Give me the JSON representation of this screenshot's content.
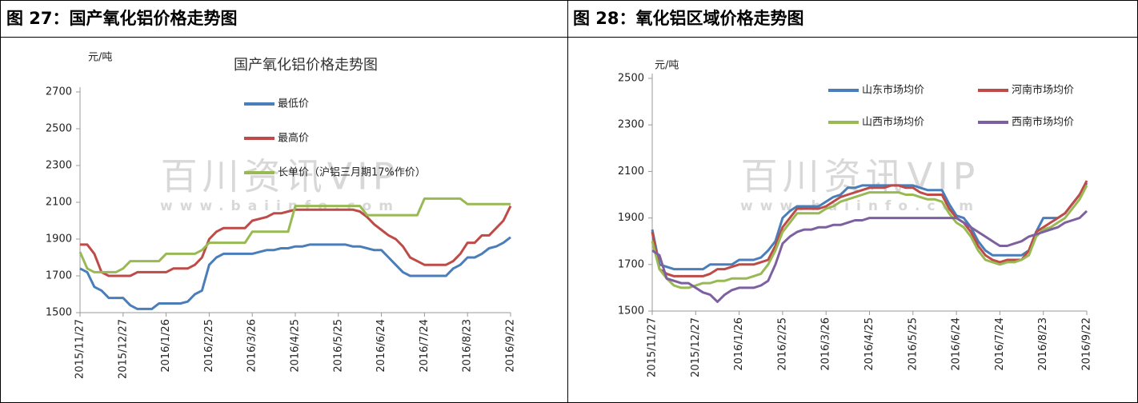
{
  "headings": [
    "图 27：国产氧化铝价格走势图",
    "图 28：氧化铝区域价格走势图"
  ],
  "chart_data": [
    {
      "type": "line",
      "title": "国产氧化铝价格走势图",
      "y_unit": "元/吨",
      "watermark": [
        "百川资讯VIP",
        "www.baiinfo.com"
      ],
      "categories": [
        "2015/11/27",
        null,
        null,
        null,
        null,
        null,
        "2015/12/27",
        null,
        null,
        null,
        null,
        null,
        "2016/1/26",
        null,
        null,
        null,
        null,
        null,
        "2016/2/25",
        null,
        null,
        null,
        null,
        null,
        "2016/3/26",
        null,
        null,
        null,
        null,
        null,
        "2016/4/25",
        null,
        null,
        null,
        null,
        null,
        "2016/5/25",
        null,
        null,
        null,
        null,
        null,
        "2016/6/24",
        null,
        null,
        null,
        null,
        null,
        "2016/7/24",
        null,
        null,
        null,
        null,
        null,
        "2016/8/23",
        null,
        null,
        null,
        null,
        null,
        "2016/9/22"
      ],
      "ylim": [
        1500,
        2700
      ],
      "yticks": [
        1500,
        1700,
        1900,
        2100,
        2300,
        2500,
        2700
      ],
      "grid": false,
      "legend": "upper center",
      "legend_columns": 1,
      "series": [
        {
          "name": "最低价",
          "color": "#4a7ebb",
          "values": [
            1740,
            1720,
            1640,
            1620,
            1580,
            1580,
            1580,
            1540,
            1520,
            1520,
            1520,
            1550,
            1550,
            1550,
            1550,
            1560,
            1600,
            1620,
            1760,
            1800,
            1820,
            1820,
            1820,
            1820,
            1820,
            1830,
            1840,
            1840,
            1850,
            1850,
            1860,
            1860,
            1870,
            1870,
            1870,
            1870,
            1870,
            1870,
            1860,
            1860,
            1850,
            1840,
            1840,
            1800,
            1760,
            1720,
            1700,
            1700,
            1700,
            1700,
            1700,
            1700,
            1740,
            1760,
            1800,
            1800,
            1820,
            1850,
            1860,
            1880,
            1910
          ]
        },
        {
          "name": "最高价",
          "color": "#be4b48",
          "values": [
            1870,
            1870,
            1820,
            1720,
            1700,
            1700,
            1700,
            1700,
            1720,
            1720,
            1720,
            1720,
            1720,
            1740,
            1740,
            1740,
            1760,
            1800,
            1900,
            1940,
            1960,
            1960,
            1960,
            1960,
            2000,
            2010,
            2020,
            2040,
            2040,
            2050,
            2060,
            2060,
            2060,
            2060,
            2060,
            2060,
            2060,
            2060,
            2060,
            2050,
            2020,
            1980,
            1950,
            1920,
            1900,
            1860,
            1800,
            1780,
            1760,
            1760,
            1760,
            1760,
            1780,
            1820,
            1880,
            1880,
            1920,
            1920,
            1960,
            2000,
            2080
          ]
        },
        {
          "name": "长单价（沪铝三月期17%作价）",
          "color": "#98b954",
          "values": [
            1830,
            1740,
            1720,
            1720,
            1720,
            1720,
            1740,
            1780,
            1780,
            1780,
            1780,
            1780,
            1820,
            1820,
            1820,
            1820,
            1820,
            1840,
            1880,
            1880,
            1880,
            1880,
            1880,
            1880,
            1940,
            1940,
            1940,
            1940,
            1940,
            1940,
            2080,
            2080,
            2080,
            2080,
            2080,
            2080,
            2080,
            2080,
            2080,
            2080,
            2030,
            2030,
            2030,
            2030,
            2030,
            2030,
            2030,
            2030,
            2120,
            2120,
            2120,
            2120,
            2120,
            2120,
            2090,
            2090,
            2090,
            2090,
            2090,
            2090,
            2090
          ]
        }
      ]
    },
    {
      "type": "line",
      "y_unit": "元/吨",
      "watermark": [
        "百川资讯VIP",
        "www.baiinfo.com"
      ],
      "categories": [
        "2015/11/27",
        null,
        null,
        null,
        null,
        null,
        "2015/12/27",
        null,
        null,
        null,
        null,
        null,
        "2016/1/26",
        null,
        null,
        null,
        null,
        null,
        "2016/2/25",
        null,
        null,
        null,
        null,
        null,
        "2016/3/26",
        null,
        null,
        null,
        null,
        null,
        "2016/4/25",
        null,
        null,
        null,
        null,
        null,
        "2016/5/25",
        null,
        null,
        null,
        null,
        null,
        "2016/6/24",
        null,
        null,
        null,
        null,
        null,
        "2016/7/24",
        null,
        null,
        null,
        null,
        null,
        "2016/8/23",
        null,
        null,
        null,
        null,
        null,
        "2016/9/22"
      ],
      "ylim": [
        1500,
        2500
      ],
      "yticks": [
        1500,
        1700,
        1900,
        2100,
        2300,
        2500
      ],
      "grid": false,
      "legend": "upper right",
      "legend_columns": 2,
      "series": [
        {
          "name": "山东市场均价",
          "color": "#4a7ebb",
          "values": [
            1850,
            1700,
            1690,
            1680,
            1680,
            1680,
            1680,
            1680,
            1700,
            1700,
            1700,
            1700,
            1720,
            1720,
            1720,
            1730,
            1760,
            1800,
            1900,
            1930,
            1950,
            1950,
            1950,
            1950,
            1970,
            1990,
            2000,
            2030,
            2030,
            2040,
            2040,
            2040,
            2040,
            2040,
            2040,
            2040,
            2040,
            2030,
            2020,
            2020,
            2020,
            1960,
            1910,
            1900,
            1860,
            1800,
            1760,
            1740,
            1740,
            1740,
            1740,
            1740,
            1760,
            1840,
            1900,
            1900,
            1900,
            1920,
            1960,
            2000,
            2050
          ]
        },
        {
          "name": "河南市场均价",
          "color": "#be4b48",
          "values": [
            1840,
            1680,
            1660,
            1650,
            1650,
            1650,
            1650,
            1650,
            1660,
            1680,
            1680,
            1690,
            1700,
            1700,
            1700,
            1710,
            1720,
            1780,
            1860,
            1900,
            1940,
            1940,
            1940,
            1940,
            1950,
            1970,
            1990,
            2000,
            2010,
            2020,
            2030,
            2030,
            2030,
            2040,
            2040,
            2030,
            2030,
            2010,
            2000,
            2000,
            2000,
            1940,
            1900,
            1880,
            1840,
            1780,
            1740,
            1720,
            1710,
            1720,
            1720,
            1720,
            1760,
            1840,
            1860,
            1880,
            1900,
            1920,
            1960,
            2000,
            2060
          ]
        },
        {
          "name": "山西市场均价",
          "color": "#98b954",
          "values": [
            1800,
            1680,
            1640,
            1610,
            1600,
            1600,
            1610,
            1620,
            1620,
            1630,
            1630,
            1640,
            1640,
            1640,
            1650,
            1660,
            1700,
            1760,
            1840,
            1880,
            1920,
            1920,
            1920,
            1920,
            1940,
            1950,
            1970,
            1980,
            1990,
            2000,
            2010,
            2010,
            2010,
            2010,
            2010,
            2000,
            2000,
            1990,
            1980,
            1980,
            1970,
            1920,
            1880,
            1860,
            1820,
            1760,
            1720,
            1710,
            1700,
            1710,
            1710,
            1720,
            1740,
            1820,
            1850,
            1860,
            1880,
            1900,
            1940,
            1980,
            2040
          ]
        },
        {
          "name": "西南市场均价",
          "color": "#7d60a0",
          "values": [
            1760,
            1740,
            1640,
            1630,
            1620,
            1620,
            1600,
            1580,
            1570,
            1540,
            1570,
            1590,
            1600,
            1600,
            1600,
            1610,
            1630,
            1700,
            1790,
            1820,
            1840,
            1850,
            1850,
            1860,
            1860,
            1870,
            1870,
            1880,
            1890,
            1890,
            1900,
            1900,
            1900,
            1900,
            1900,
            1900,
            1900,
            1900,
            1900,
            1900,
            1900,
            1900,
            1900,
            1880,
            1860,
            1840,
            1820,
            1800,
            1780,
            1780,
            1790,
            1800,
            1820,
            1830,
            1840,
            1850,
            1860,
            1880,
            1890,
            1900,
            1930
          ]
        }
      ]
    }
  ]
}
